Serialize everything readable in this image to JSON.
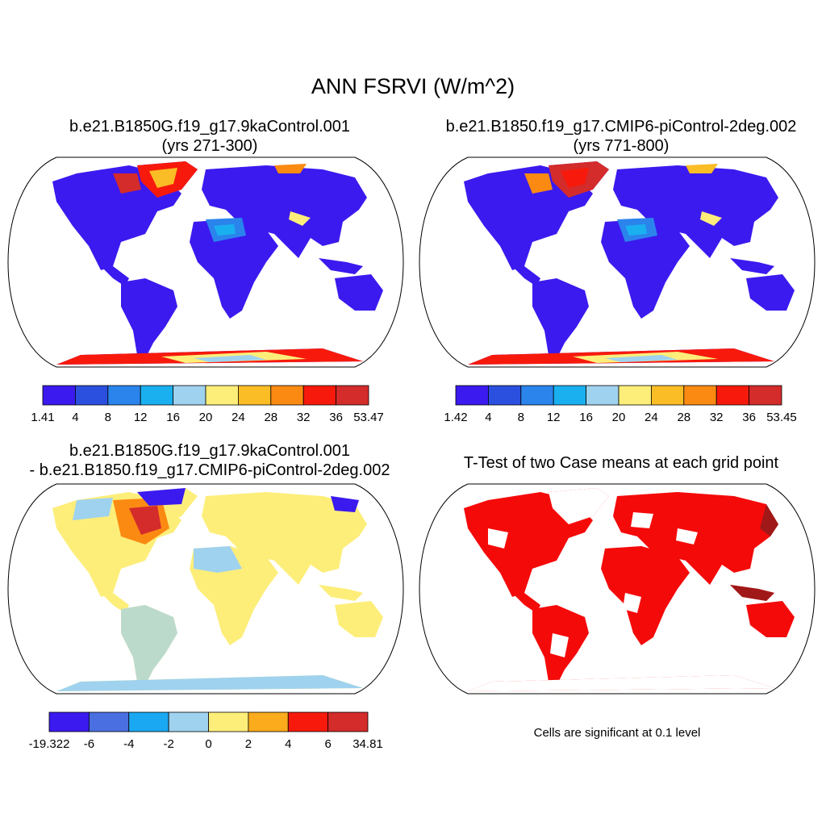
{
  "title": "ANN FSRVI (W/m^2)",
  "panels": [
    {
      "id": "case1",
      "title_lines": [
        "b.e21.B1850G.f19_g17.9kaControl.001",
        "(yrs 271-300)"
      ],
      "colorbar": {
        "colors": [
          "#3b1aef",
          "#2b4fdf",
          "#2a84ec",
          "#1ab0f0",
          "#9fd2ee",
          "#fdee7a",
          "#fbbd25",
          "#fb8a12",
          "#f71a0c",
          "#d42b2b"
        ],
        "labels": [
          "1.41",
          "4",
          "8",
          "12",
          "16",
          "20",
          "24",
          "28",
          "32",
          "36",
          "53.47"
        ]
      }
    },
    {
      "id": "case2",
      "title_lines": [
        "b.e21.B1850.f19_g17.CMIP6-piControl-2deg.002",
        "(yrs 771-800)"
      ],
      "colorbar": {
        "colors": [
          "#3b1aef",
          "#2b4fdf",
          "#2a84ec",
          "#1ab0f0",
          "#9fd2ee",
          "#fdee7a",
          "#fbbd25",
          "#fb8a12",
          "#f71a0c",
          "#d42b2b"
        ],
        "labels": [
          "1.42",
          "4",
          "8",
          "12",
          "16",
          "20",
          "24",
          "28",
          "32",
          "36",
          "53.45"
        ]
      }
    },
    {
      "id": "diff",
      "title_lines": [
        "b.e21.B1850G.f19_g17.9kaControl.001",
        "- b.e21.B1850.f19_g17.CMIP6-piControl-2deg.002"
      ],
      "colorbar": {
        "colors": [
          "#3b1aef",
          "#4a6fe0",
          "#1ba8f2",
          "#9fd2ee",
          "#fdee7a",
          "#fbab1c",
          "#f71a0c",
          "#d42b2b"
        ],
        "labels": [
          "-19.322",
          "-6",
          "-4",
          "-2",
          "0",
          "2",
          "4",
          "6",
          "34.81"
        ]
      }
    },
    {
      "id": "ttest",
      "title_lines": [
        "T-Test of two Case means at each grid point"
      ],
      "note": "Cells are significant at 0.1 level",
      "fill_color": "#f50a0a",
      "edge_color": "#a01818"
    }
  ]
}
